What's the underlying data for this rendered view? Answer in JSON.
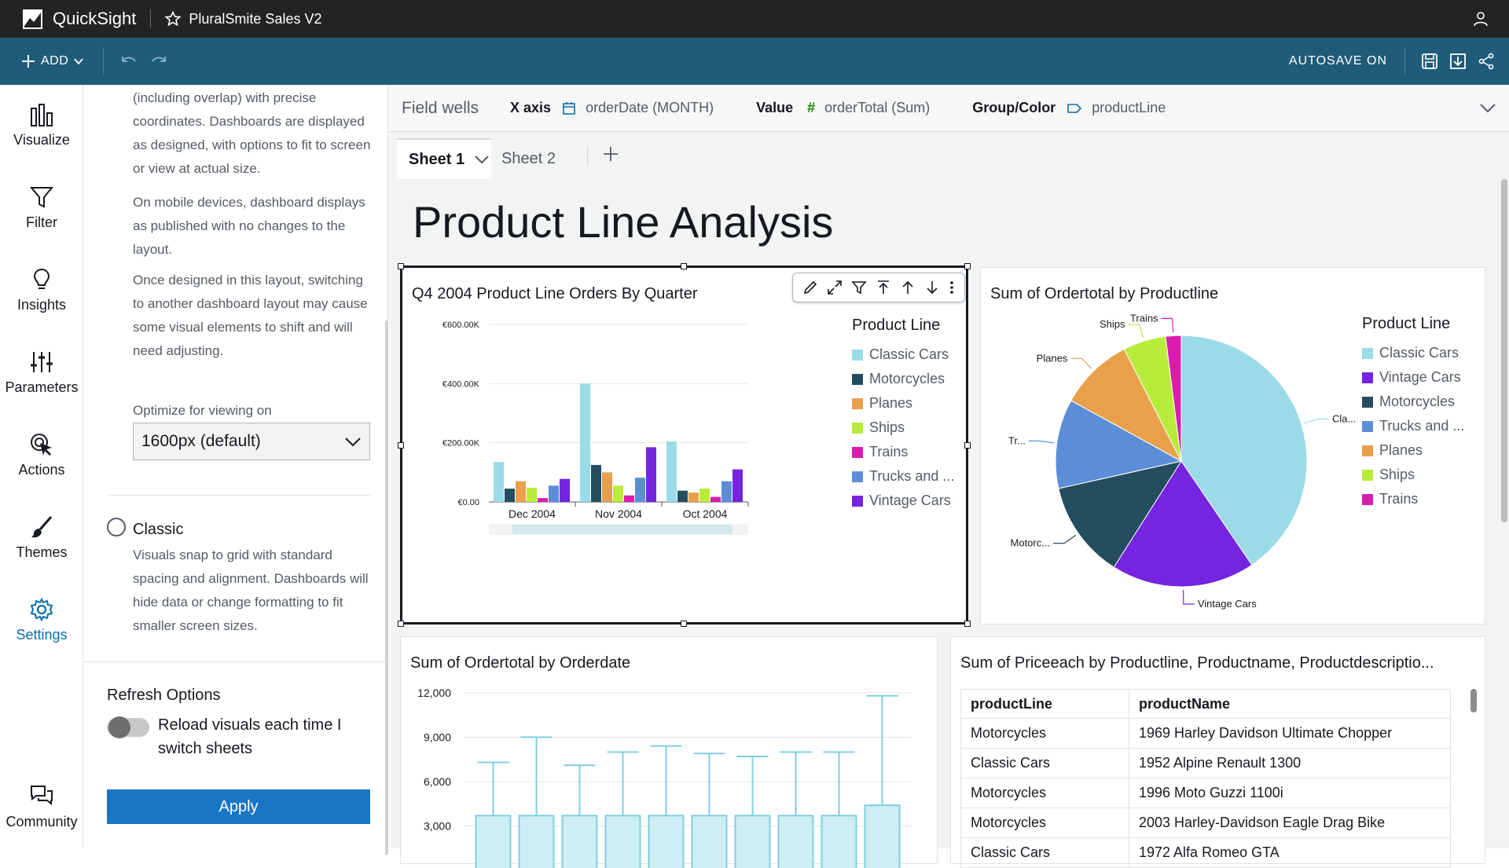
{
  "topbar": {
    "app_name": "QuickSight",
    "analysis_name": "PluralSmite Sales V2"
  },
  "toolbar": {
    "add_label": "ADD",
    "autosave_label": "AUTOSAVE ON"
  },
  "nav": {
    "visualize": "Visualize",
    "filter": "Filter",
    "insights": "Insights",
    "parameters": "Parameters",
    "actions": "Actions",
    "themes": "Themes",
    "settings": "Settings",
    "community": "Community"
  },
  "settings_panel": {
    "free_form_text": "(including overlap) with precise coordinates. Dashboards are displayed as designed, with options to fit to screen or view at actual size.",
    "mobile_text": "On mobile devices, dashboard displays as published with no changes to the layout.",
    "switch_text": "Once designed in this layout, switching to another dashboard layout may cause some visual elements to shift and will need adjusting.",
    "optimize_label": "Optimize for viewing on",
    "optimize_value": "1600px (default)",
    "classic_title": "Classic",
    "classic_text": "Visuals snap to grid with standard spacing and alignment. Dashboards will hide data or change formatting to fit smaller screen sizes.",
    "refresh_title": "Refresh Options",
    "refresh_toggle_label": "Reload visuals each time I switch sheets",
    "refresh_toggle_on": false,
    "apply_label": "Apply"
  },
  "field_wells": {
    "title": "Field wells",
    "x_axis_key": "X axis",
    "x_axis_val": "orderDate (MONTH)",
    "value_key": "Value",
    "value_val": "orderTotal (Sum)",
    "group_key": "Group/Color",
    "group_val": "productLine"
  },
  "sheets": {
    "tabs": [
      "Sheet 1",
      "Sheet 2"
    ],
    "active": "Sheet 1"
  },
  "sheet_title": "Product Line Analysis",
  "colors": {
    "classic_cars": "#9bdbe8",
    "motorcycles": "#244d5f",
    "planes": "#e8a04d",
    "ships": "#b8ec3a",
    "trains": "#d91cae",
    "trucks": "#5c8ed8",
    "vintage": "#7524e0"
  },
  "bar_visual": {
    "title": "Q4 2004 Product Line Orders By Quarter",
    "legend_title": "Product Line",
    "legend": [
      "Classic Cars",
      "Motorcycles",
      "Planes",
      "Ships",
      "Trains",
      "Trucks and ...",
      "Vintage Cars"
    ],
    "y_ticks": [
      "€600.00K",
      "€400.00K",
      "€200.00K",
      "€0.00"
    ]
  },
  "pie_visual": {
    "title": "Sum of Ordertotal by Productline",
    "legend_title": "Product Line",
    "legend": [
      "Classic Cars",
      "Vintage Cars",
      "Motorcycles",
      "Trucks and ...",
      "Planes",
      "Ships",
      "Trains"
    ],
    "labels": {
      "classic": "Cla...",
      "vintage": "Vintage Cars",
      "motorcycles": "Motorc...",
      "trucks": "Tr...",
      "planes": "Planes",
      "ships": "Ships",
      "trains": "Trains"
    }
  },
  "box_visual": {
    "title": "Sum of Ordertotal by Orderdate",
    "y_ticks": [
      "12,000",
      "9,000",
      "6,000",
      "3,000"
    ]
  },
  "table_visual": {
    "title": "Sum of Priceeach by Productline, Productname, Productdescriptio...",
    "columns": [
      "productLine",
      "productName"
    ],
    "rows": [
      [
        "Motorcycles",
        "1969 Harley Davidson Ultimate Chopper"
      ],
      [
        "Classic Cars",
        "1952 Alpine Renault 1300"
      ],
      [
        "Motorcycles",
        "1996 Moto Guzzi 1100i"
      ],
      [
        "Motorcycles",
        "2003 Harley-Davidson Eagle Drag Bike"
      ],
      [
        "Classic Cars",
        "1972 Alfa Romeo GTA"
      ]
    ]
  },
  "chart_data": [
    {
      "type": "bar",
      "title": "Q4 2004 Product Line Orders By Quarter",
      "categories": [
        "Dec 2004",
        "Nov 2004",
        "Oct 2004"
      ],
      "ylim": [
        0,
        600000
      ],
      "legend_position": "right",
      "series": [
        {
          "name": "Classic Cars",
          "values": [
            135000,
            400000,
            205000
          ]
        },
        {
          "name": "Motorcycles",
          "values": [
            45000,
            125000,
            38000
          ]
        },
        {
          "name": "Planes",
          "values": [
            70000,
            100000,
            32000
          ]
        },
        {
          "name": "Ships",
          "values": [
            48000,
            55000,
            45000
          ]
        },
        {
          "name": "Trains",
          "values": [
            13000,
            22000,
            17000
          ]
        },
        {
          "name": "Trucks and ...",
          "values": [
            55000,
            82000,
            70000
          ]
        },
        {
          "name": "Vintage Cars",
          "values": [
            78000,
            185000,
            110000
          ]
        }
      ]
    },
    {
      "type": "pie",
      "title": "Sum of Ordertotal by Productline",
      "legend_position": "right",
      "slices": [
        {
          "name": "Classic Cars",
          "value": 40.5
        },
        {
          "name": "Vintage Cars",
          "value": 18.5
        },
        {
          "name": "Motorcycles",
          "value": 12.5
        },
        {
          "name": "Trucks and ...",
          "value": 11.5
        },
        {
          "name": "Planes",
          "value": 9.5
        },
        {
          "name": "Ships",
          "value": 5.5
        },
        {
          "name": "Trains",
          "value": 2.0
        }
      ]
    },
    {
      "type": "box",
      "title": "Sum of Ordertotal by Orderdate",
      "y_ticks_visible": [
        12000,
        9000,
        6000,
        3000
      ],
      "whisker_tops": [
        7300,
        9000,
        7100,
        8000,
        8400,
        7900,
        7700,
        8000,
        8000,
        11800
      ]
    }
  ]
}
